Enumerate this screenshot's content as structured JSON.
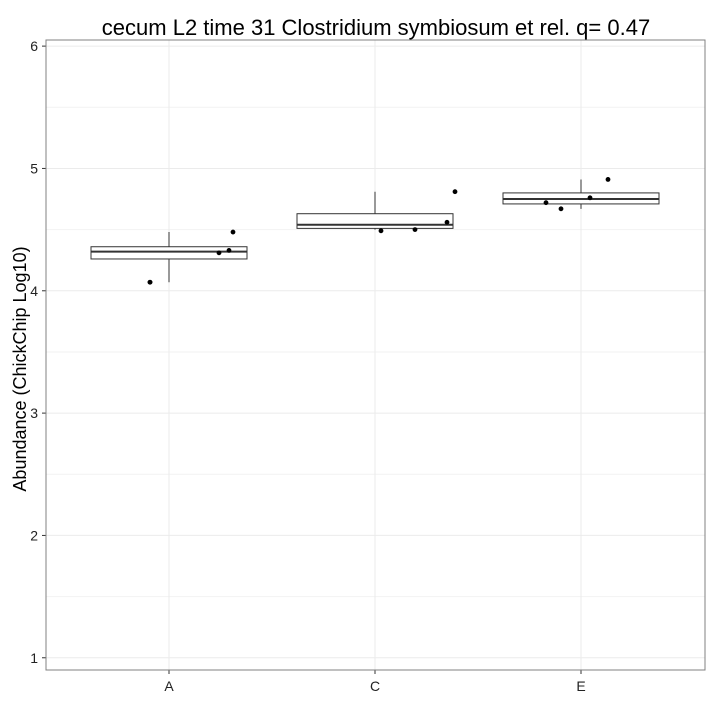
{
  "chart_data": {
    "type": "box",
    "title": "cecum L2 time 31 Clostridium symbiosum et rel. q= 0.47",
    "xlabel": "",
    "ylabel": "Abundance (ChickChip Log10)",
    "ylim": [
      0.9,
      6.05
    ],
    "yticks": [
      "1",
      "2",
      "3",
      "4",
      "5",
      "6"
    ],
    "categories": [
      "A",
      "C",
      "E"
    ],
    "grid": true,
    "boxes": [
      {
        "category": "A",
        "min": 4.07,
        "q1": 4.26,
        "median": 4.32,
        "q3": 4.36,
        "max": 4.48
      },
      {
        "category": "C",
        "min": 4.5,
        "q1": 4.51,
        "median": 4.54,
        "q3": 4.63,
        "max": 4.81
      },
      {
        "category": "E",
        "min": 4.67,
        "q1": 4.71,
        "median": 4.75,
        "q3": 4.8,
        "max": 4.91
      }
    ],
    "points": [
      {
        "category": "A",
        "values": [
          4.07,
          4.07,
          4.31,
          4.33,
          4.48
        ]
      },
      {
        "category": "C",
        "values": [
          4.49,
          4.5,
          4.56,
          4.81
        ]
      },
      {
        "category": "E",
        "values": [
          4.67,
          4.72,
          4.76,
          4.91
        ]
      }
    ]
  }
}
